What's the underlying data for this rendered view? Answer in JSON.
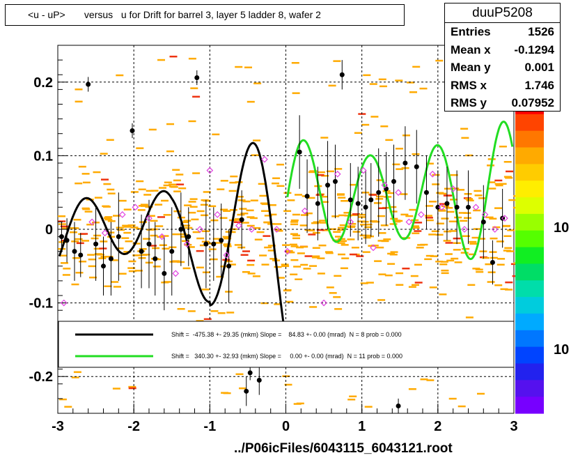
{
  "title": "<u - uP>       versus   u for Drift for barrel 3, layer 5 ladder 8, wafer 2",
  "stats": {
    "name": "duuP5208",
    "rows": [
      {
        "label": "Entries",
        "value": "1526"
      },
      {
        "label": "Mean x",
        "value": "-0.1294"
      },
      {
        "label": "Mean y",
        "value": "0.001"
      },
      {
        "label": "RMS x",
        "value": "1.746"
      },
      {
        "label": "RMS y",
        "value": "0.07952"
      }
    ]
  },
  "footer": "../P06icFiles/6043115_6043121.root",
  "colorbar": {
    "labels": [
      "10",
      "10"
    ]
  },
  "colors": {
    "fit1": "#000000",
    "fit2": "#22dd22",
    "marker_open": "#e040e0",
    "cell_orange": "#ffaa00",
    "cell_red": "#ee3311"
  },
  "chart_data": {
    "type": "scatter",
    "xlim": [
      -3,
      3
    ],
    "ylim": [
      -0.25,
      0.25
    ],
    "x_ticks": [
      -3,
      -2,
      -1,
      0,
      1,
      2,
      3
    ],
    "x_tick_labels": [
      "-3",
      "-2",
      "-1",
      "0",
      "1",
      "2",
      "3"
    ],
    "y_ticks": [
      -0.2,
      -0.1,
      0,
      0.1,
      0.2
    ],
    "y_tick_labels": [
      "-0.2",
      "-0.1",
      "0",
      "0.1",
      "0.2"
    ],
    "grid": true,
    "legend": {
      "placement": "lower-center",
      "entries": [
        {
          "series": "fit1",
          "text": "Shift =  -475.38 +- 29.35 (mkm) Slope =    84.83 +- 0.00 (mrad)  N = 8 prob = 0.000"
        },
        {
          "series": "fit2",
          "text": "Shift =   340.30 +- 32.93 (mkm) Slope =     0.00 +- 0.00 (mrad)  N = 11 prob = 0.000"
        }
      ]
    },
    "profile_black": [
      {
        "x": -2.95,
        "y": -0.01,
        "e": 0.02
      },
      {
        "x": -2.88,
        "y": -0.015,
        "e": 0.03
      },
      {
        "x": -2.78,
        "y": -0.03,
        "e": 0.04
      },
      {
        "x": -2.7,
        "y": -0.035,
        "e": 0.03
      },
      {
        "x": -2.6,
        "y": 0.197,
        "e": 0.01
      },
      {
        "x": -2.5,
        "y": -0.02,
        "e": 0.05
      },
      {
        "x": -2.4,
        "y": -0.05,
        "e": 0.04
      },
      {
        "x": -2.3,
        "y": -0.04,
        "e": 0.05
      },
      {
        "x": -2.2,
        "y": -0.01,
        "e": 0.06
      },
      {
        "x": -2.02,
        "y": 0.134,
        "e": 0.01
      },
      {
        "x": -1.9,
        "y": -0.03,
        "e": 0.05
      },
      {
        "x": -1.8,
        "y": -0.02,
        "e": 0.06
      },
      {
        "x": -1.72,
        "y": -0.04,
        "e": 0.05
      },
      {
        "x": -1.6,
        "y": -0.06,
        "e": 0.05
      },
      {
        "x": -1.5,
        "y": -0.03,
        "e": 0.06
      },
      {
        "x": -1.38,
        "y": 0.0,
        "e": 0.05
      },
      {
        "x": -1.28,
        "y": -0.01,
        "e": 0.04
      },
      {
        "x": -1.17,
        "y": 0.206,
        "e": 0.01
      },
      {
        "x": -1.05,
        "y": -0.02,
        "e": 0.06
      },
      {
        "x": -0.95,
        "y": -0.02,
        "e": 0.05
      },
      {
        "x": -0.85,
        "y": -0.015,
        "e": 0.05
      },
      {
        "x": -0.75,
        "y": -0.05,
        "e": 0.05
      },
      {
        "x": -0.58,
        "y": 0.013,
        "e": 0.04
      },
      {
        "x": -0.52,
        "y": -0.22,
        "e": 0.02
      },
      {
        "x": -0.47,
        "y": -0.195,
        "e": 0.01
      },
      {
        "x": -0.35,
        "y": -0.205,
        "e": 0.02
      },
      {
        "x": 0.18,
        "y": 0.105,
        "e": 0.05
      },
      {
        "x": 0.28,
        "y": 0.045,
        "e": 0.05
      },
      {
        "x": 0.42,
        "y": 0.035,
        "e": 0.05
      },
      {
        "x": 0.55,
        "y": 0.06,
        "e": 0.06
      },
      {
        "x": 0.65,
        "y": 0.065,
        "e": 0.05
      },
      {
        "x": 0.74,
        "y": 0.21,
        "e": 0.02
      },
      {
        "x": 0.85,
        "y": 0.04,
        "e": 0.05
      },
      {
        "x": 0.95,
        "y": 0.035,
        "e": 0.05
      },
      {
        "x": 1.05,
        "y": 0.03,
        "e": 0.05
      },
      {
        "x": 1.12,
        "y": 0.04,
        "e": 0.05
      },
      {
        "x": 1.22,
        "y": 0.05,
        "e": 0.06
      },
      {
        "x": 1.32,
        "y": 0.055,
        "e": 0.05
      },
      {
        "x": 1.42,
        "y": 0.065,
        "e": 0.05
      },
      {
        "x": 1.48,
        "y": -0.24,
        "e": 0.01
      },
      {
        "x": 1.57,
        "y": 0.09,
        "e": 0.05
      },
      {
        "x": 1.72,
        "y": 0.085,
        "e": 0.05
      },
      {
        "x": 1.85,
        "y": 0.05,
        "e": 0.05
      },
      {
        "x": 2.0,
        "y": 0.03,
        "e": 0.05
      },
      {
        "x": 2.12,
        "y": 0.035,
        "e": 0.05
      },
      {
        "x": 2.25,
        "y": 0.03,
        "e": 0.05
      },
      {
        "x": 2.4,
        "y": 0.03,
        "e": 0.05
      },
      {
        "x": 2.6,
        "y": 0.01,
        "e": 0.05
      },
      {
        "x": 2.72,
        "y": -0.045,
        "e": 0.03
      },
      {
        "x": 2.85,
        "y": 0.015,
        "e": 0.04
      }
    ],
    "profile_open": [
      {
        "x": -2.92,
        "y": -0.1
      },
      {
        "x": -2.55,
        "y": 0.01
      },
      {
        "x": -2.38,
        "y": -0.005
      },
      {
        "x": -2.15,
        "y": 0.02
      },
      {
        "x": -1.98,
        "y": 0.03
      },
      {
        "x": -1.8,
        "y": 0.015
      },
      {
        "x": -1.63,
        "y": -0.01
      },
      {
        "x": -1.45,
        "y": -0.06
      },
      {
        "x": -1.3,
        "y": -0.02
      },
      {
        "x": -1.13,
        "y": 0.0
      },
      {
        "x": -1.0,
        "y": 0.08
      },
      {
        "x": -0.9,
        "y": 0.02
      },
      {
        "x": -0.78,
        "y": -0.035
      },
      {
        "x": -0.62,
        "y": 0.005
      },
      {
        "x": -0.45,
        "y": 0.0
      },
      {
        "x": -0.28,
        "y": 0.095
      },
      {
        "x": -0.12,
        "y": 0.0
      },
      {
        "x": 0.02,
        "y": -0.03
      },
      {
        "x": 0.25,
        "y": 0.025
      },
      {
        "x": 0.5,
        "y": -0.1
      },
      {
        "x": 0.68,
        "y": 0.075
      },
      {
        "x": 0.85,
        "y": 0.01
      },
      {
        "x": 1.02,
        "y": 0.08
      },
      {
        "x": 1.15,
        "y": -0.025
      },
      {
        "x": 1.3,
        "y": 0.06
      },
      {
        "x": 1.48,
        "y": 0.05
      },
      {
        "x": 1.62,
        "y": 0.01
      },
      {
        "x": 1.78,
        "y": 0.02
      },
      {
        "x": 1.93,
        "y": 0.075
      },
      {
        "x": 2.05,
        "y": 0.03
      },
      {
        "x": 2.2,
        "y": 0.055
      },
      {
        "x": 2.35,
        "y": 0.0
      },
      {
        "x": 2.5,
        "y": 0.03
      },
      {
        "x": 2.62,
        "y": 0.02
      },
      {
        "x": 2.75,
        "y": 0.0
      },
      {
        "x": 2.88,
        "y": 0.015
      }
    ],
    "fit1_x_range": [
      -2.98,
      -0.03
    ],
    "fit2_x_range": [
      0.02,
      2.98
    ]
  }
}
